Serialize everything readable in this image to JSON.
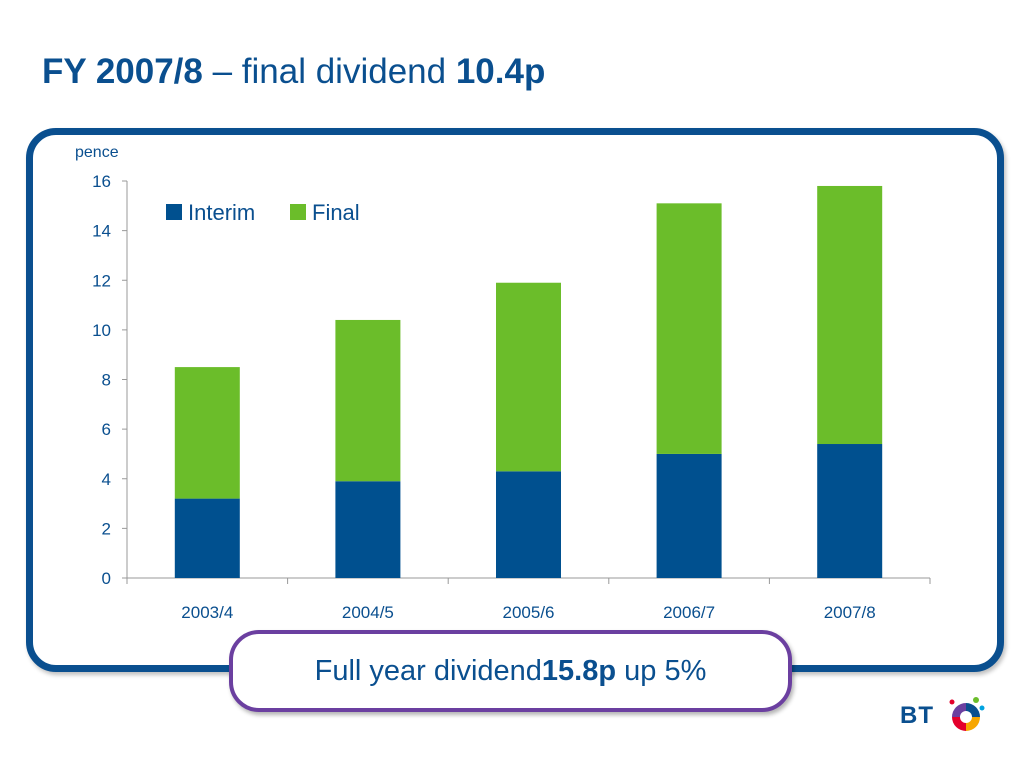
{
  "title": {
    "part1": "FY 2007/8",
    "part2": " – final dividend ",
    "part3": "10.4p"
  },
  "callout": {
    "part1": "Full year dividend ",
    "part2": "15.8p",
    "part3": " up 5%"
  },
  "logo": {
    "text": "BT"
  },
  "colors": {
    "interim": "#00508f",
    "final": "#6bbd2a",
    "brand_blue": "#0a4f8f",
    "callout_border": "#6b3fa0"
  },
  "chart_data": {
    "type": "bar",
    "stacked": true,
    "ylabel": "pence",
    "categories": [
      "2003/4",
      "2004/5",
      "2005/6",
      "2006/7",
      "2007/8"
    ],
    "series": [
      {
        "name": "Interim",
        "values": [
          3.2,
          3.9,
          4.3,
          5.0,
          5.4
        ]
      },
      {
        "name": "Final",
        "values": [
          5.3,
          6.5,
          7.6,
          10.1,
          10.4
        ]
      }
    ],
    "ylim": [
      0,
      16
    ],
    "yticks": [
      0,
      2,
      4,
      6,
      8,
      10,
      12,
      14,
      16
    ],
    "legend_position": "top-left",
    "grid": false
  }
}
